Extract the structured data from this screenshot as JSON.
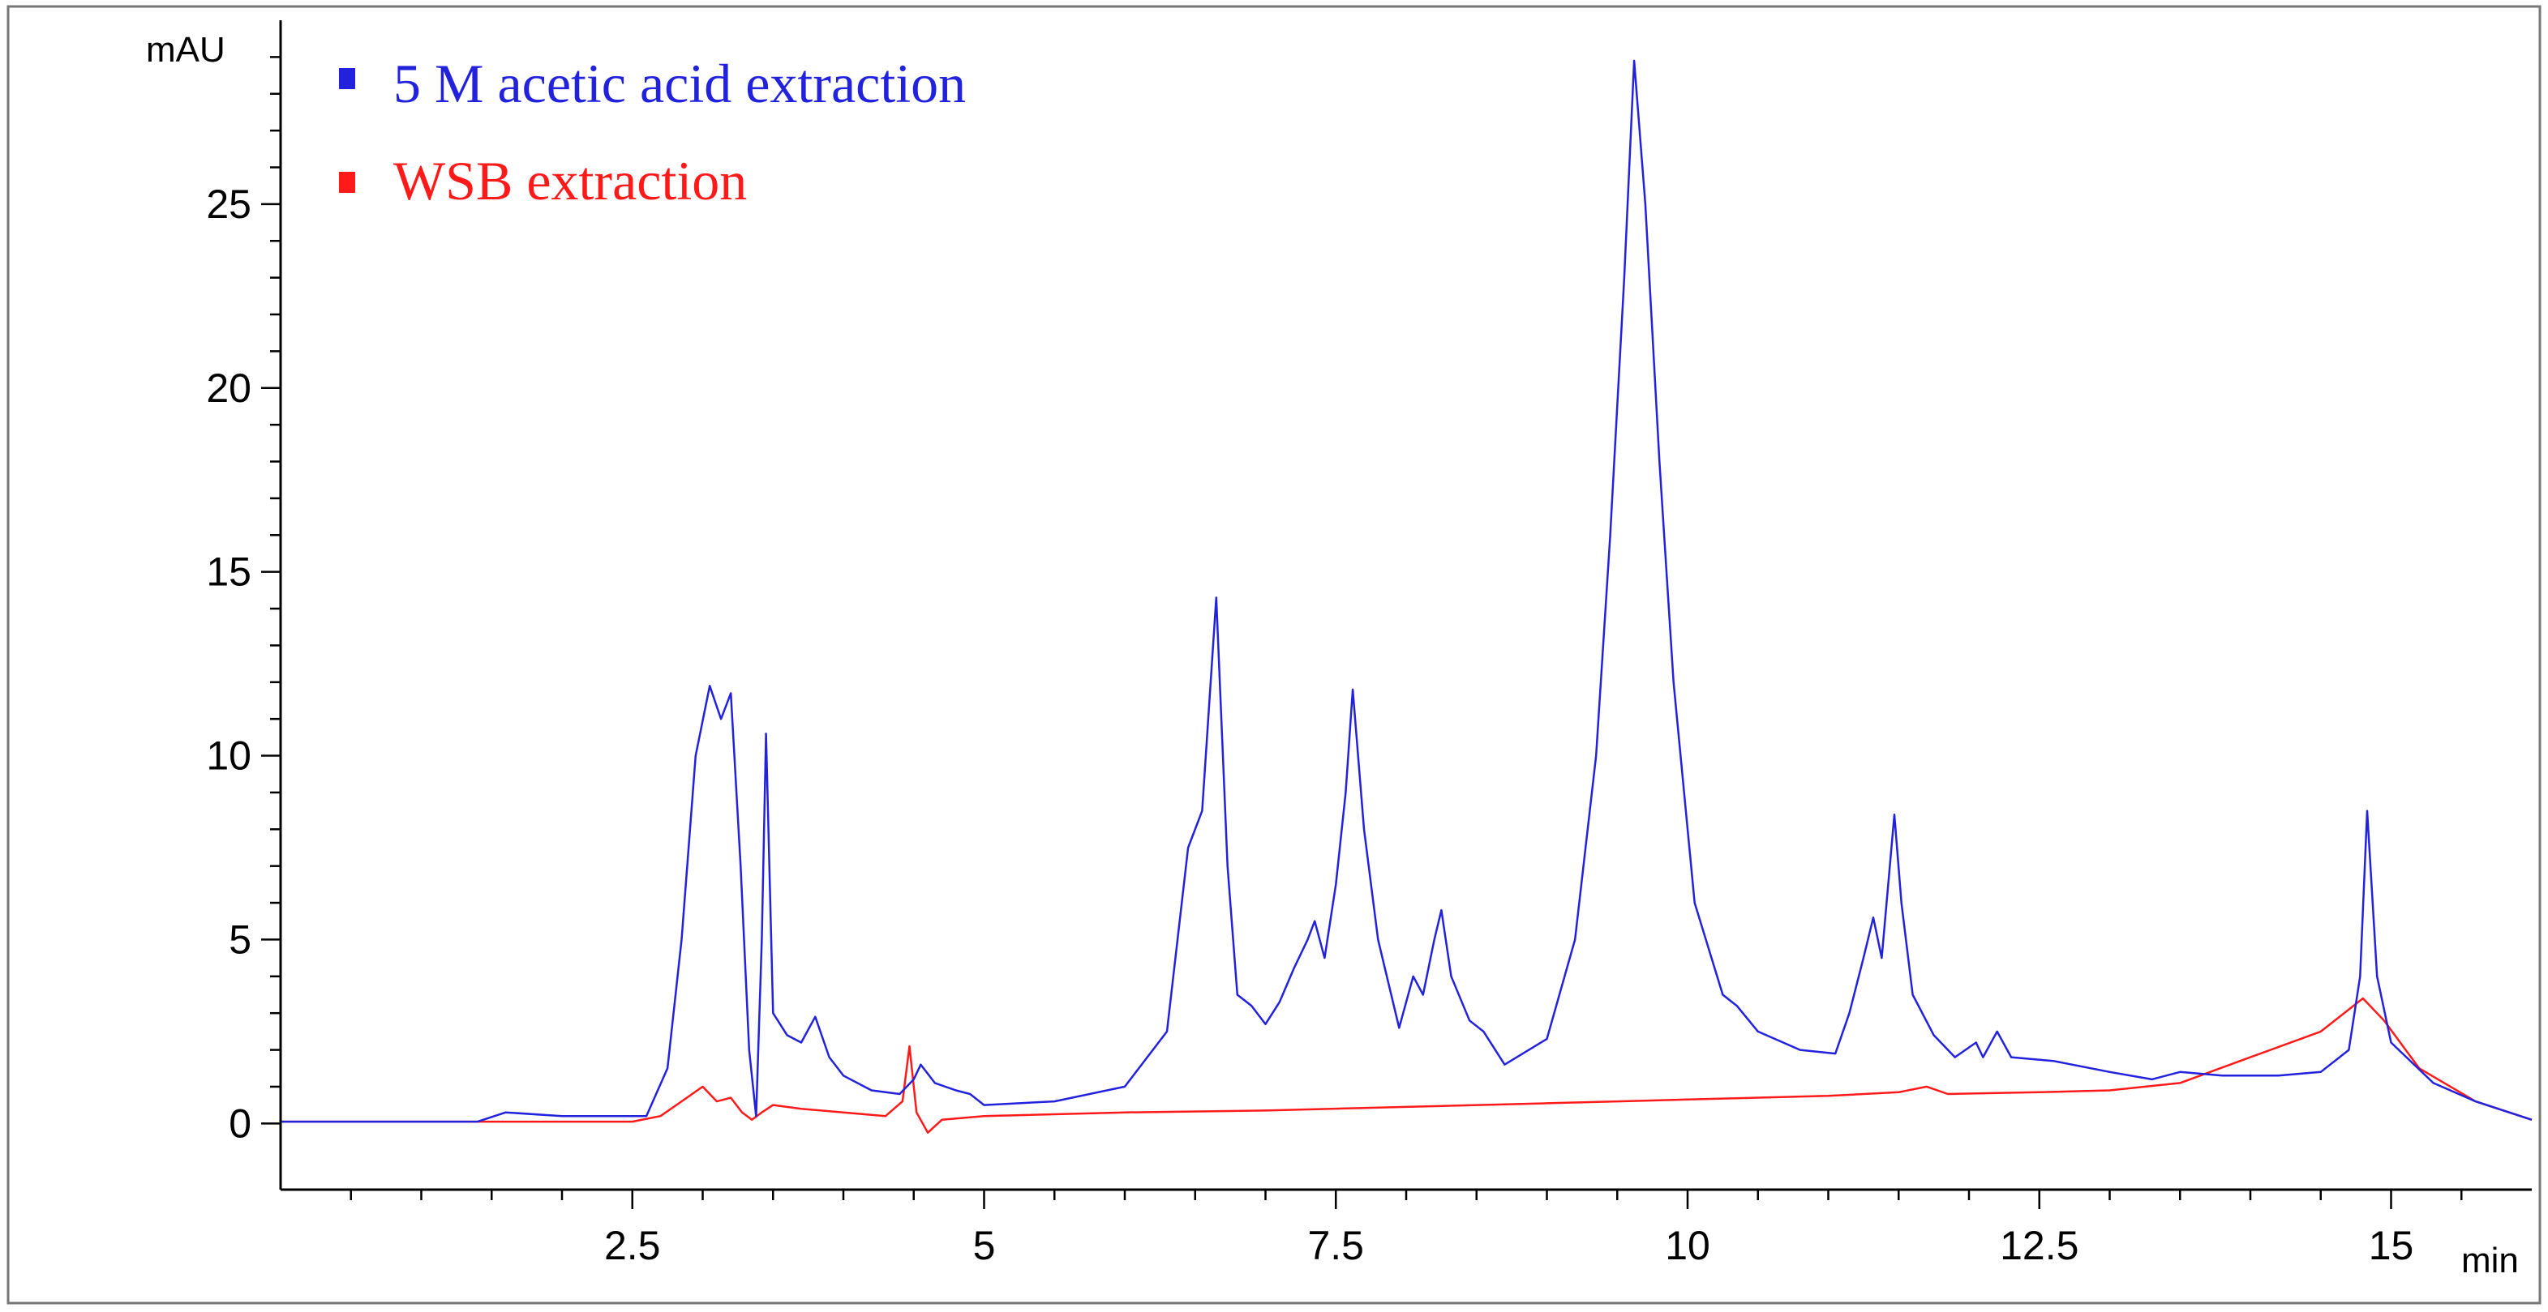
{
  "chart_data": {
    "type": "line",
    "ylabel": "mAU",
    "xlabel": "min",
    "xlim": [
      0.0,
      16.0
    ],
    "ylim": [
      -1.8,
      30.0
    ],
    "x_ticks": [
      2.5,
      5,
      7.5,
      10,
      12.5,
      15
    ],
    "x_tick_labels": [
      "2.5",
      "5",
      "7.5",
      "10",
      "12.5",
      "15"
    ],
    "y_ticks": [
      0,
      5,
      10,
      15,
      20,
      25
    ],
    "y_tick_labels": [
      "0",
      "5",
      "10",
      "15",
      "20",
      "25"
    ],
    "grid": false,
    "legend_position": "top-left",
    "series": [
      {
        "name": "5 M acetic acid extraction",
        "color": "#2222dd",
        "points": [
          [
            0.0,
            0.05
          ],
          [
            1.4,
            0.05
          ],
          [
            1.6,
            0.3
          ],
          [
            2.0,
            0.2
          ],
          [
            2.6,
            0.2
          ],
          [
            2.75,
            1.5
          ],
          [
            2.85,
            5.0
          ],
          [
            2.95,
            10.0
          ],
          [
            3.05,
            11.9
          ],
          [
            3.13,
            11.0
          ],
          [
            3.2,
            11.7
          ],
          [
            3.27,
            7.0
          ],
          [
            3.33,
            2.0
          ],
          [
            3.38,
            0.2
          ],
          [
            3.42,
            5.0
          ],
          [
            3.45,
            10.6
          ],
          [
            3.5,
            3.0
          ],
          [
            3.6,
            2.4
          ],
          [
            3.7,
            2.2
          ],
          [
            3.8,
            2.9
          ],
          [
            3.9,
            1.8
          ],
          [
            4.0,
            1.3
          ],
          [
            4.2,
            0.9
          ],
          [
            4.4,
            0.8
          ],
          [
            4.5,
            1.2
          ],
          [
            4.55,
            1.6
          ],
          [
            4.65,
            1.1
          ],
          [
            4.8,
            0.9
          ],
          [
            4.9,
            0.8
          ],
          [
            5.0,
            0.5
          ],
          [
            5.5,
            0.6
          ],
          [
            6.0,
            1.0
          ],
          [
            6.3,
            2.5
          ],
          [
            6.45,
            7.5
          ],
          [
            6.55,
            8.5
          ],
          [
            6.65,
            14.3
          ],
          [
            6.73,
            7.0
          ],
          [
            6.8,
            3.5
          ],
          [
            6.9,
            3.2
          ],
          [
            7.0,
            2.7
          ],
          [
            7.1,
            3.3
          ],
          [
            7.2,
            4.2
          ],
          [
            7.3,
            5.0
          ],
          [
            7.35,
            5.5
          ],
          [
            7.42,
            4.5
          ],
          [
            7.5,
            6.5
          ],
          [
            7.57,
            9.0
          ],
          [
            7.62,
            11.8
          ],
          [
            7.7,
            8.0
          ],
          [
            7.8,
            5.0
          ],
          [
            7.95,
            2.6
          ],
          [
            8.05,
            4.0
          ],
          [
            8.12,
            3.5
          ],
          [
            8.2,
            5.0
          ],
          [
            8.25,
            5.8
          ],
          [
            8.32,
            4.0
          ],
          [
            8.45,
            2.8
          ],
          [
            8.55,
            2.5
          ],
          [
            8.7,
            1.6
          ],
          [
            9.0,
            2.3
          ],
          [
            9.2,
            5.0
          ],
          [
            9.35,
            10.0
          ],
          [
            9.45,
            16.0
          ],
          [
            9.55,
            23.0
          ],
          [
            9.62,
            28.9
          ],
          [
            9.7,
            25.0
          ],
          [
            9.8,
            18.0
          ],
          [
            9.9,
            12.0
          ],
          [
            10.05,
            6.0
          ],
          [
            10.25,
            3.5
          ],
          [
            10.35,
            3.2
          ],
          [
            10.5,
            2.5
          ],
          [
            10.8,
            2.0
          ],
          [
            11.05,
            1.9
          ],
          [
            11.15,
            3.0
          ],
          [
            11.25,
            4.5
          ],
          [
            11.32,
            5.6
          ],
          [
            11.38,
            4.5
          ],
          [
            11.47,
            8.4
          ],
          [
            11.52,
            6.0
          ],
          [
            11.6,
            3.5
          ],
          [
            11.75,
            2.4
          ],
          [
            11.9,
            1.8
          ],
          [
            12.05,
            2.2
          ],
          [
            12.1,
            1.8
          ],
          [
            12.2,
            2.5
          ],
          [
            12.3,
            1.8
          ],
          [
            12.6,
            1.7
          ],
          [
            13.0,
            1.4
          ],
          [
            13.3,
            1.2
          ],
          [
            13.5,
            1.4
          ],
          [
            13.8,
            1.3
          ],
          [
            14.2,
            1.3
          ],
          [
            14.5,
            1.4
          ],
          [
            14.7,
            2.0
          ],
          [
            14.78,
            4.0
          ],
          [
            14.83,
            8.5
          ],
          [
            14.9,
            4.0
          ],
          [
            15.0,
            2.2
          ],
          [
            15.3,
            1.1
          ],
          [
            15.6,
            0.6
          ],
          [
            16.0,
            0.1
          ]
        ]
      },
      {
        "name": "WSB extraction",
        "color": "#ff1a1a",
        "points": [
          [
            0.0,
            0.05
          ],
          [
            2.5,
            0.05
          ],
          [
            2.7,
            0.2
          ],
          [
            2.85,
            0.6
          ],
          [
            3.0,
            1.0
          ],
          [
            3.1,
            0.6
          ],
          [
            3.2,
            0.7
          ],
          [
            3.28,
            0.3
          ],
          [
            3.35,
            0.1
          ],
          [
            3.42,
            0.3
          ],
          [
            3.5,
            0.5
          ],
          [
            3.7,
            0.4
          ],
          [
            4.0,
            0.3
          ],
          [
            4.3,
            0.2
          ],
          [
            4.42,
            0.6
          ],
          [
            4.47,
            2.1
          ],
          [
            4.52,
            0.3
          ],
          [
            4.6,
            -0.25
          ],
          [
            4.7,
            0.1
          ],
          [
            5.0,
            0.2
          ],
          [
            6.0,
            0.3
          ],
          [
            7.0,
            0.35
          ],
          [
            8.0,
            0.45
          ],
          [
            9.0,
            0.55
          ],
          [
            10.0,
            0.65
          ],
          [
            11.0,
            0.75
          ],
          [
            11.5,
            0.85
          ],
          [
            11.7,
            1.0
          ],
          [
            11.85,
            0.8
          ],
          [
            12.5,
            0.85
          ],
          [
            13.0,
            0.9
          ],
          [
            13.5,
            1.1
          ],
          [
            14.0,
            1.8
          ],
          [
            14.5,
            2.5
          ],
          [
            14.8,
            3.4
          ],
          [
            14.95,
            2.8
          ],
          [
            15.2,
            1.5
          ],
          [
            15.6,
            0.6
          ],
          [
            16.0,
            0.1
          ]
        ]
      }
    ]
  }
}
